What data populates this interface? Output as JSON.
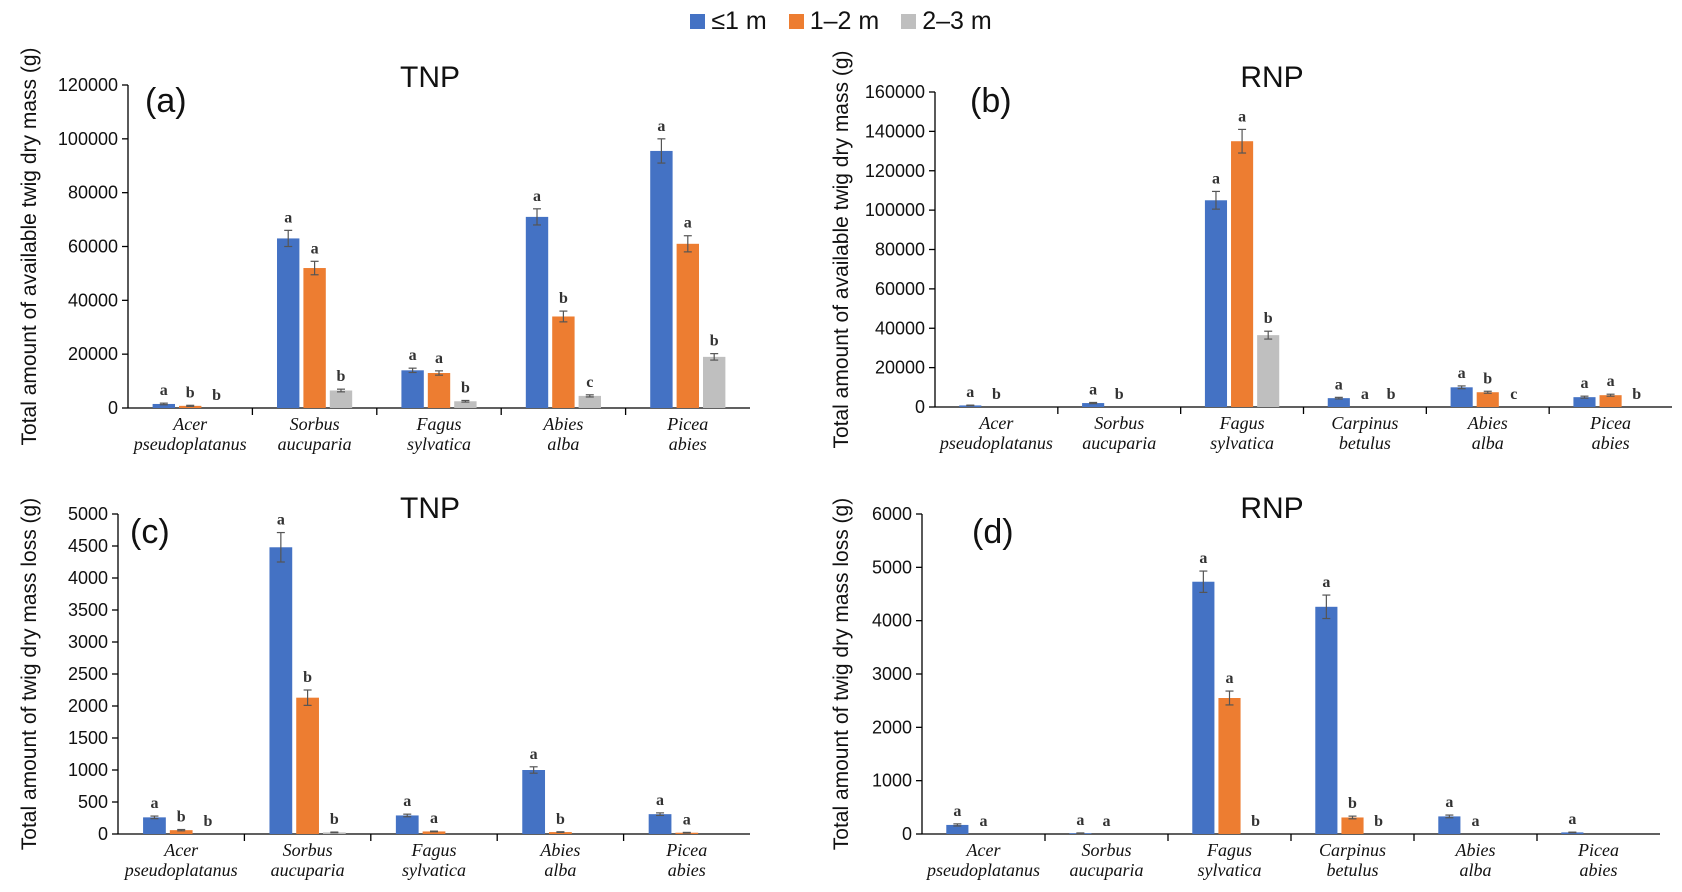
{
  "legend": {
    "items": [
      {
        "label": "≤1 m",
        "color": "#4472C4"
      },
      {
        "label": "1–2 m",
        "color": "#ED7D31"
      },
      {
        "label": "2–3 m",
        "color": "#BFBFBF"
      }
    ]
  },
  "chart_data": [
    {
      "type": "bar",
      "panel": "(a)",
      "title": "TNP",
      "ylabel": "Total amount of available twig dry mass (g)",
      "ylim": [
        0,
        120000
      ],
      "yticks": [
        "0",
        "20000",
        "40000",
        "60000",
        "80000",
        "100000",
        "120000"
      ],
      "categories": [
        [
          "Acer",
          "pseudoplatanus"
        ],
        [
          "Sorbus",
          "aucuparia"
        ],
        [
          "Fagus",
          "sylvatica"
        ],
        [
          "Abies",
          "alba"
        ],
        [
          "Picea",
          "abies"
        ]
      ],
      "series": [
        {
          "name": "≤1 m",
          "values": [
            1500,
            63000,
            14000,
            71000,
            95500
          ],
          "errors": [
            300,
            3000,
            800,
            3000,
            4500
          ],
          "letters": [
            "a",
            "a",
            "a",
            "a",
            "a"
          ]
        },
        {
          "name": "1–2 m",
          "values": [
            800,
            52000,
            13000,
            34000,
            61000
          ],
          "errors": [
            200,
            2500,
            800,
            2000,
            3000
          ],
          "letters": [
            "b",
            "a",
            "a",
            "b",
            "a"
          ]
        },
        {
          "name": "2–3 m",
          "values": [
            0,
            6500,
            2500,
            4500,
            19000
          ],
          "errors": [
            0,
            500,
            300,
            400,
            1200
          ],
          "letters": [
            "b",
            "b",
            "b",
            "c",
            "b"
          ]
        }
      ]
    },
    {
      "type": "bar",
      "panel": "(b)",
      "title": "RNP",
      "ylabel": "Total amount of available twig dry mass (g)",
      "ylim": [
        0,
        160000
      ],
      "yticks": [
        "0",
        "20000",
        "40000",
        "60000",
        "80000",
        "100000",
        "120000",
        "140000",
        "160000"
      ],
      "categories": [
        [
          "Acer",
          "pseudoplatanus"
        ],
        [
          "Sorbus",
          "aucuparia"
        ],
        [
          "Fagus",
          "sylvatica"
        ],
        [
          "Carpinus",
          "betulus"
        ],
        [
          "Abies",
          "alba"
        ],
        [
          "Picea",
          "abies"
        ]
      ],
      "series": [
        {
          "name": "≤1 m",
          "values": [
            800,
            2000,
            105000,
            4500,
            10000,
            5000
          ],
          "errors": [
            150,
            300,
            4500,
            400,
            700,
            500
          ],
          "letters": [
            "a",
            "a",
            "a",
            "a",
            "a",
            "a"
          ]
        },
        {
          "name": "1–2 m",
          "values": [
            0,
            0,
            135000,
            0,
            7500,
            6000
          ],
          "errors": [
            0,
            0,
            6000,
            0,
            500,
            500
          ],
          "letters": [
            "b",
            "b",
            "a",
            "a",
            "b",
            "a"
          ]
        },
        {
          "name": "2–3 m",
          "values": [
            0,
            0,
            36500,
            0,
            0,
            0
          ],
          "errors": [
            0,
            0,
            2000,
            0,
            0,
            0
          ],
          "letters": [
            "",
            "",
            "b",
            "b",
            "c",
            "b"
          ]
        }
      ]
    },
    {
      "type": "bar",
      "panel": "(c)",
      "title": "TNP",
      "ylabel": "Total amount of twig dry mass loss (g)",
      "ylim": [
        0,
        5000
      ],
      "yticks": [
        "0",
        "500",
        "1000",
        "1500",
        "2000",
        "2500",
        "3000",
        "3500",
        "4000",
        "4500",
        "5000"
      ],
      "categories": [
        [
          "Acer",
          "pseudoplatanus"
        ],
        [
          "Sorbus",
          "aucuparia"
        ],
        [
          "Fagus",
          "sylvatica"
        ],
        [
          "Abies",
          "alba"
        ],
        [
          "Picea",
          "abies"
        ]
      ],
      "series": [
        {
          "name": "≤1 m",
          "values": [
            260,
            4480,
            290,
            1000,
            310
          ],
          "errors": [
            20,
            230,
            20,
            50,
            20
          ],
          "letters": [
            "a",
            "a",
            "a",
            "a",
            "a"
          ]
        },
        {
          "name": "1–2 m",
          "values": [
            60,
            2130,
            40,
            30,
            20
          ],
          "errors": [
            10,
            120,
            5,
            5,
            5
          ],
          "letters": [
            "b",
            "b",
            "a",
            "b",
            "a"
          ]
        },
        {
          "name": "2–3 m",
          "values": [
            0,
            25,
            0,
            0,
            0
          ],
          "errors": [
            0,
            5,
            0,
            0,
            0
          ],
          "letters": [
            "b",
            "b",
            "",
            "",
            ""
          ]
        }
      ]
    },
    {
      "type": "bar",
      "panel": "(d)",
      "title": "RNP",
      "ylabel": "Total amount of twig dry mass loss (g)",
      "ylim": [
        0,
        6000
      ],
      "yticks": [
        "0",
        "1000",
        "2000",
        "3000",
        "4000",
        "5000",
        "6000"
      ],
      "categories": [
        [
          "Acer",
          "pseudoplatanus"
        ],
        [
          "Sorbus",
          "aucuparia"
        ],
        [
          "Fagus",
          "sylvatica"
        ],
        [
          "Carpinus",
          "betulus"
        ],
        [
          "Abies",
          "alba"
        ],
        [
          "Picea",
          "abies"
        ]
      ],
      "series": [
        {
          "name": "≤1 m",
          "values": [
            170,
            15,
            4730,
            4260,
            330,
            30
          ],
          "errors": [
            20,
            5,
            200,
            220,
            25,
            5
          ],
          "letters": [
            "a",
            "a",
            "a",
            "a",
            "a",
            "a"
          ]
        },
        {
          "name": "1–2 m",
          "values": [
            0,
            0,
            2550,
            310,
            0,
            0
          ],
          "errors": [
            0,
            0,
            130,
            25,
            0,
            0
          ],
          "letters": [
            "a",
            "a",
            "a",
            "b",
            "a",
            ""
          ]
        },
        {
          "name": "2–3 m",
          "values": [
            0,
            0,
            0,
            0,
            0,
            0
          ],
          "errors": [
            0,
            0,
            0,
            0,
            0,
            0
          ],
          "letters": [
            "",
            "",
            "b",
            "b",
            "",
            ""
          ]
        }
      ]
    }
  ]
}
